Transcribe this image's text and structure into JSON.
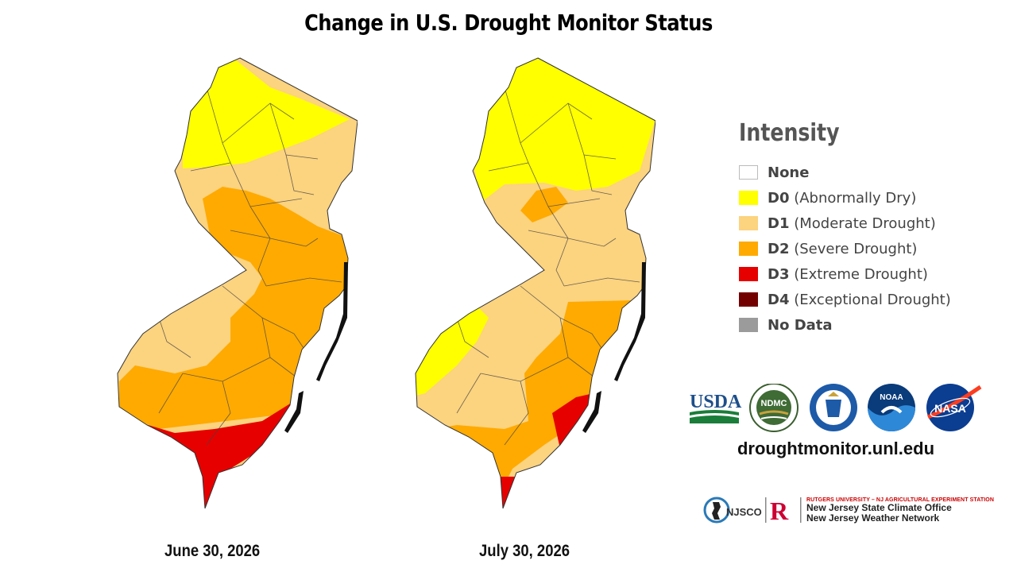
{
  "title": "Change in U.S. Drought Monitor Status",
  "maps": {
    "left": {
      "date": "June 30, 2026",
      "categories_present": [
        "D0",
        "D1",
        "D2",
        "D3"
      ]
    },
    "right": {
      "date": "July 30, 2026",
      "categories_present": [
        "D0",
        "D1",
        "D2",
        "D3"
      ]
    }
  },
  "legend": {
    "title": "Intensity",
    "items": [
      {
        "code": "None",
        "desc": "",
        "color": "#ffffff"
      },
      {
        "code": "D0",
        "desc": "(Abnormally Dry)",
        "color": "#ffff00"
      },
      {
        "code": "D1",
        "desc": "(Moderate Drought)",
        "color": "#fcd37f"
      },
      {
        "code": "D2",
        "desc": "(Severe Drought)",
        "color": "#ffaa00"
      },
      {
        "code": "D3",
        "desc": "(Extreme Drought)",
        "color": "#e60000"
      },
      {
        "code": "D4",
        "desc": "(Exceptional Drought)",
        "color": "#730000"
      },
      {
        "code": "No Data",
        "desc": "",
        "color": "#9b9b9b"
      }
    ]
  },
  "logos": {
    "usda": "USDA",
    "ndmc": "NDMC",
    "ndmc_ring": "NATIONAL DROUGHT MITIGATION CENTER",
    "noaa": "NOAA",
    "nasa": "NASA",
    "commerce": "DEPARTMENT OF COMMERCE"
  },
  "url": "droughtmonitor.unl.edu",
  "credits": {
    "njsco_logo": "NJSCO",
    "rutgers_mark": "R",
    "rutgers_line": "RUTGERS UNIVERSITY – NJ AGRICULTURAL EXPERIMENT STATION",
    "office": "New Jersey State Climate Office",
    "network": "New Jersey Weather Network"
  }
}
